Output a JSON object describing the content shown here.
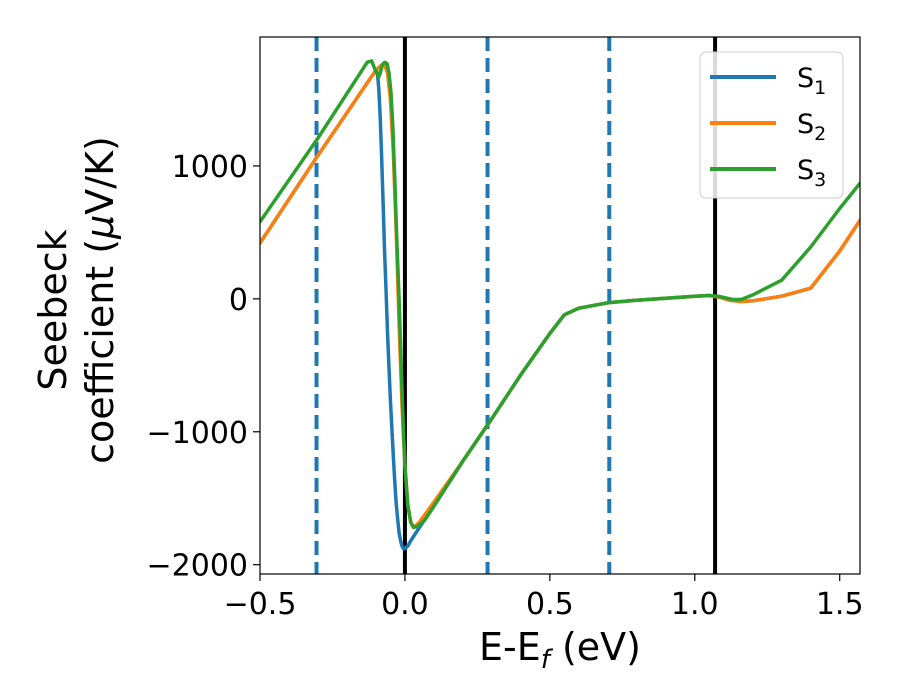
{
  "chart_data": {
    "type": "line",
    "xlabel": "E-E",
    "xlabel_sub": "f",
    "xlabel_unit": " (eV)",
    "ylabel_line1": "Seebeck",
    "ylabel_line2": "coefficient  (",
    "ylabel_mu": "μ",
    "ylabel_unit": "V/K)",
    "xlim": [
      -0.5,
      1.57
    ],
    "ylim": [
      -2070,
      1970
    ],
    "xticks": [
      {
        "value": -0.5,
        "label": "−0.5"
      },
      {
        "value": 0.0,
        "label": "0.0"
      },
      {
        "value": 0.5,
        "label": "0.5"
      },
      {
        "value": 1.0,
        "label": "1.0"
      },
      {
        "value": 1.5,
        "label": "1.5"
      }
    ],
    "yticks": [
      {
        "value": 1000,
        "label": "1000"
      },
      {
        "value": 0,
        "label": "0"
      },
      {
        "value": -1000,
        "label": "−1000"
      },
      {
        "value": -2000,
        "label": "−2000"
      }
    ],
    "grid": false,
    "legend_position": "top-right",
    "vlines_solid": [
      0.0,
      1.07
    ],
    "vlines_dashed": [
      -0.305,
      0.285,
      0.705
    ],
    "series": [
      {
        "name": "S",
        "sub": "1",
        "color": "#1f77b4",
        "x": [
          -0.5,
          -0.3,
          -0.1,
          -0.095,
          -0.09,
          -0.085,
          -0.08,
          -0.075,
          -0.07,
          -0.065,
          -0.06,
          -0.055,
          -0.05,
          -0.045,
          -0.04,
          -0.035,
          -0.03,
          -0.025,
          -0.02,
          -0.015,
          -0.01,
          -0.005,
          0.0,
          0.01,
          0.02,
          0.05,
          0.1,
          0.2,
          0.3,
          0.4,
          0.5,
          0.55,
          0.6,
          0.7,
          0.8,
          0.9,
          1.0,
          1.05,
          1.09,
          1.12,
          1.16,
          1.2,
          1.3,
          1.4,
          1.5,
          1.57
        ],
        "y": [
          420,
          1080,
          1720,
          1700,
          1580,
          1350,
          1050,
          700,
          350,
          50,
          -250,
          -520,
          -760,
          -980,
          -1180,
          -1380,
          -1540,
          -1660,
          -1760,
          -1820,
          -1860,
          -1880,
          -1880,
          -1860,
          -1820,
          -1720,
          -1560,
          -1220,
          -900,
          -570,
          -260,
          -120,
          -70,
          -30,
          -10,
          5,
          20,
          25,
          10,
          -10,
          -20,
          -15,
          20,
          80,
          360,
          590
        ]
      },
      {
        "name": "S",
        "sub": "2",
        "color": "#ff7f0e",
        "x": [
          -0.5,
          -0.3,
          -0.1,
          -0.08,
          -0.07,
          -0.06,
          -0.05,
          -0.04,
          -0.03,
          -0.02,
          -0.01,
          0.0,
          0.01,
          0.02,
          0.03,
          0.05,
          0.1,
          0.2,
          0.3,
          0.4,
          0.5,
          0.55,
          0.6,
          0.7,
          0.8,
          0.9,
          1.0,
          1.05,
          1.09,
          1.12,
          1.16,
          1.2,
          1.3,
          1.4,
          1.5,
          1.57
        ],
        "y": [
          420,
          1080,
          1720,
          1760,
          1760,
          1700,
          1500,
          1100,
          500,
          -200,
          -800,
          -1250,
          -1550,
          -1680,
          -1720,
          -1680,
          -1530,
          -1220,
          -900,
          -570,
          -260,
          -120,
          -70,
          -30,
          -10,
          5,
          20,
          25,
          10,
          -10,
          -20,
          -15,
          20,
          80,
          360,
          590
        ]
      },
      {
        "name": "S",
        "sub": "3",
        "color": "#2ca02c",
        "x": [
          -0.5,
          -0.3,
          -0.13,
          -0.115,
          -0.1,
          -0.09,
          -0.085,
          -0.078,
          -0.07,
          -0.062,
          -0.055,
          -0.048,
          -0.042,
          -0.035,
          -0.028,
          -0.02,
          -0.012,
          -0.005,
          0.0,
          0.01,
          0.02,
          0.03,
          0.045,
          0.07,
          0.1,
          0.2,
          0.3,
          0.4,
          0.5,
          0.55,
          0.6,
          0.7,
          0.8,
          0.9,
          1.0,
          1.05,
          1.08,
          1.1,
          1.13,
          1.16,
          1.2,
          1.3,
          1.4,
          1.5,
          1.57
        ],
        "y": [
          580,
          1210,
          1780,
          1790,
          1710,
          1670,
          1700,
          1760,
          1780,
          1770,
          1700,
          1550,
          1300,
          900,
          450,
          0,
          -550,
          -1000,
          -1250,
          -1550,
          -1680,
          -1720,
          -1710,
          -1660,
          -1560,
          -1220,
          -900,
          -570,
          -260,
          -120,
          -70,
          -30,
          -10,
          5,
          20,
          25,
          20,
          10,
          -5,
          -5,
          30,
          140,
          390,
          680,
          870
        ]
      }
    ]
  }
}
